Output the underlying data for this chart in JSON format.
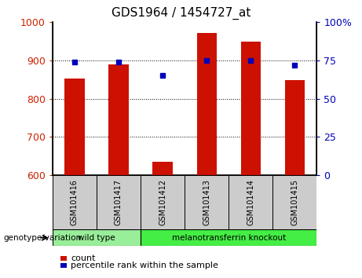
{
  "title": "GDS1964 / 1454727_at",
  "samples": [
    "GSM101416",
    "GSM101417",
    "GSM101412",
    "GSM101413",
    "GSM101414",
    "GSM101415"
  ],
  "counts": [
    853,
    890,
    635,
    972,
    950,
    848
  ],
  "percentiles": [
    74,
    74,
    65,
    75,
    75,
    72
  ],
  "ylim_left": [
    600,
    1000
  ],
  "ylim_right": [
    0,
    100
  ],
  "yticks_left": [
    600,
    700,
    800,
    900,
    1000
  ],
  "yticks_right": [
    0,
    25,
    50,
    75,
    100
  ],
  "ytick_labels_right": [
    "0",
    "25",
    "50",
    "75",
    "100%"
  ],
  "bar_color": "#cc1100",
  "dot_color": "#0000bb",
  "bar_bottom": 600,
  "groups": [
    {
      "label": "wild type",
      "indices": [
        0,
        1
      ],
      "color": "#99ee99"
    },
    {
      "label": "melanotransferrin knockout",
      "indices": [
        2,
        3,
        4,
        5
      ],
      "color": "#44ee44"
    }
  ],
  "group_label": "genotype/variation",
  "legend_count_label": "count",
  "legend_pct_label": "percentile rank within the sample",
  "tick_label_color_left": "#cc2200",
  "tick_label_color_right": "#0000bb",
  "grid_color": "#000000",
  "background_color": "#ffffff",
  "label_area_color": "#cccccc",
  "bar_width": 0.45
}
